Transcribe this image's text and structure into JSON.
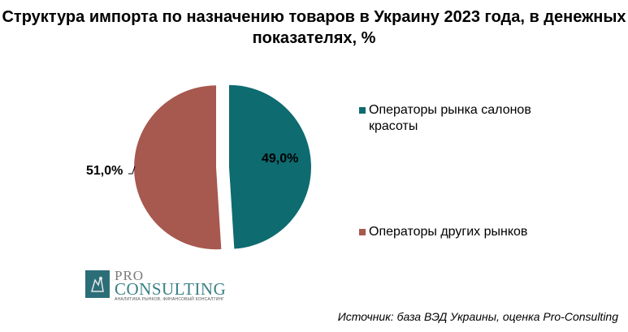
{
  "chart_data": {
    "type": "pie",
    "title": "Структура импорта по назначению товаров в Украину 2023 года, в денежных показателях, %",
    "slices": [
      {
        "name": "Операторы рынка салонов красоты",
        "value": 49.0,
        "label": "49,0%",
        "color": "#0e6b70"
      },
      {
        "name": "Операторы других рынков",
        "value": 51.0,
        "label": "51,0%",
        "color": "#a7584f"
      }
    ],
    "legend_position": "right"
  },
  "logo": {
    "line1": "PRO",
    "line2": "CONSULTING",
    "tagline": "АНАЛИТИКА РЫНКОВ, ФИНАНСОВЫЙ КОНСАЛТИНГ"
  },
  "source": "Источник: база ВЭД Украины, оценка Pro-Consulting"
}
